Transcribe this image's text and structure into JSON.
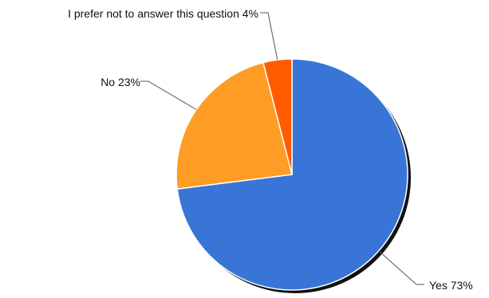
{
  "chart_data": {
    "type": "pie",
    "title": "",
    "start_angle_deg": 0,
    "direction": "clockwise",
    "legend": "none",
    "slices": [
      {
        "label": "Yes",
        "value": 73,
        "display": "Yes 73%",
        "color": "#3875d7"
      },
      {
        "label": "No",
        "value": 23,
        "display": "No 23%",
        "color": "#ff9c24"
      },
      {
        "label": "I prefer not to answer this question",
        "value": 4,
        "display": "I prefer not to answer this question 4%",
        "color": "#ff5c00"
      }
    ]
  }
}
